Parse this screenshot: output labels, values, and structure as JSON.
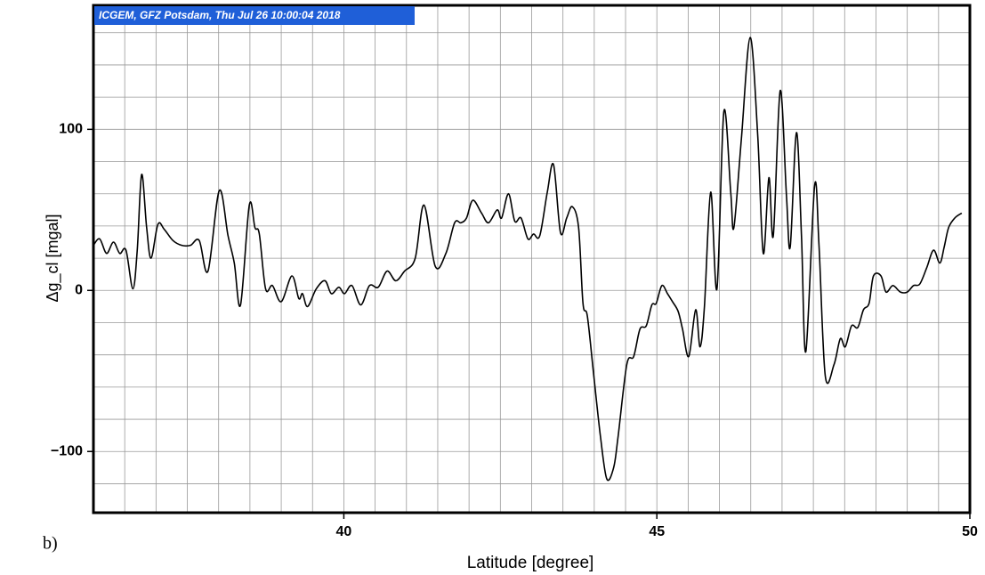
{
  "chart_data": {
    "type": "line",
    "title": "ICGEM, GFZ Potsdam, Thu Jul 26 10:00:04 2018",
    "xlabel": "Latitude [degree]",
    "ylabel": "Δg_cl [mgal]",
    "panel_label": "b)",
    "xlim": [
      36,
      50
    ],
    "ylim": [
      -138,
      177
    ],
    "xticks": [
      40,
      45,
      50
    ],
    "yticks": [
      {
        "value": -100,
        "label": "−100"
      },
      0,
      100
    ],
    "xgrid": [
      36.5,
      37,
      37.5,
      38,
      38.5,
      39,
      39.5,
      40,
      40.5,
      41,
      41.5,
      42,
      42.5,
      43,
      43.5,
      44,
      44.5,
      45,
      45.5,
      46,
      46.5,
      47,
      47.5,
      48,
      48.5,
      49,
      49.5
    ],
    "ygrid": [
      -120,
      -100,
      -80,
      -60,
      -40,
      -20,
      0,
      20,
      40,
      60,
      80,
      100,
      120,
      140,
      160
    ],
    "grid": true,
    "series": [
      {
        "color": "#000000",
        "x": [
          36.0,
          36.1,
          36.21,
          36.32,
          36.42,
          36.52,
          36.63,
          36.7,
          36.77,
          36.85,
          36.92,
          37.03,
          37.13,
          37.27,
          37.41,
          37.55,
          37.69,
          37.83,
          38.01,
          38.15,
          38.25,
          38.35,
          38.49,
          38.58,
          38.65,
          38.75,
          38.86,
          39.0,
          39.17,
          39.28,
          39.34,
          39.42,
          39.56,
          39.7,
          39.8,
          39.92,
          40.01,
          40.13,
          40.27,
          40.41,
          40.55,
          40.69,
          40.83,
          40.97,
          41.14,
          41.28,
          41.46,
          41.63,
          41.77,
          41.87,
          41.96,
          42.06,
          42.2,
          42.31,
          42.45,
          42.52,
          42.63,
          42.73,
          42.83,
          42.94,
          43.03,
          43.13,
          43.25,
          43.35,
          43.46,
          43.56,
          43.65,
          43.75,
          43.82,
          43.89,
          43.99,
          44.1,
          44.2,
          44.31,
          44.38,
          44.52,
          44.63,
          44.73,
          44.83,
          44.92,
          44.99,
          45.08,
          45.17,
          45.25,
          45.34,
          45.41,
          45.51,
          45.62,
          45.69,
          45.76,
          45.86,
          45.96,
          46.07,
          46.18,
          46.23,
          46.35,
          46.49,
          46.61,
          46.7,
          46.79,
          46.86,
          46.97,
          47.07,
          47.13,
          47.23,
          47.31,
          47.38,
          47.52,
          47.59,
          47.69,
          47.83,
          47.93,
          48.01,
          48.11,
          48.21,
          48.3,
          48.39,
          48.46,
          48.58,
          48.66,
          48.77,
          48.89,
          49.0,
          49.1,
          49.2,
          49.31,
          49.42,
          49.52,
          49.59,
          49.66,
          49.76,
          49.87
        ],
        "values": [
          28,
          32,
          23,
          30,
          23,
          25,
          1,
          25,
          72,
          39,
          20,
          41,
          38,
          31,
          28,
          28,
          31,
          12,
          62,
          34,
          17,
          -9,
          53,
          39,
          35,
          1,
          3,
          -7,
          9,
          -5,
          -2,
          -10,
          1,
          6,
          -2,
          2,
          -2,
          3,
          -9,
          3,
          2,
          12,
          6,
          12,
          20,
          53,
          15,
          23,
          42,
          42,
          45,
          56,
          48,
          42,
          50,
          45,
          60,
          43,
          45,
          32,
          35,
          34,
          61,
          78,
          36,
          45,
          52,
          39,
          -8,
          -16,
          -52,
          -91,
          -117,
          -110,
          -91,
          -46,
          -41,
          -24,
          -22,
          -9,
          -8,
          3,
          -2,
          -7,
          -13,
          -24,
          -41,
          -12,
          -35,
          -10,
          61,
          1,
          111,
          61,
          39,
          94,
          157,
          97,
          23,
          70,
          34,
          124,
          59,
          27,
          98,
          34,
          -38,
          65,
          28,
          -53,
          -46,
          -30,
          -35,
          -22,
          -23,
          -12,
          -8,
          9,
          9,
          -1,
          3,
          -1,
          -1,
          3,
          4,
          14,
          25,
          17,
          27,
          39,
          45,
          48
        ]
      }
    ]
  }
}
